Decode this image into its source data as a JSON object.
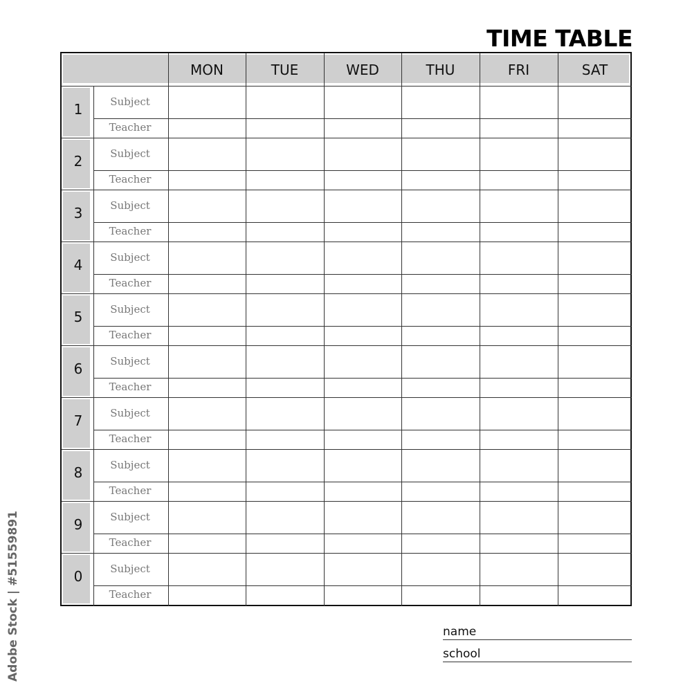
{
  "title": "TIME TABLE",
  "days": [
    "MON",
    "TUE",
    "WED",
    "THU",
    "FRI",
    "SAT"
  ],
  "periods": [
    "1",
    "2",
    "3",
    "4",
    "5",
    "6",
    "7",
    "8",
    "9",
    "0"
  ],
  "row_labels": {
    "subject": "Subject",
    "teacher": "Teacher"
  },
  "footer": {
    "name_label": "name",
    "school_label": "school"
  },
  "watermark": "Adobe Stock | #51559891",
  "colors": {
    "header_fill": "#cfcfcf",
    "lines": "#333333"
  }
}
